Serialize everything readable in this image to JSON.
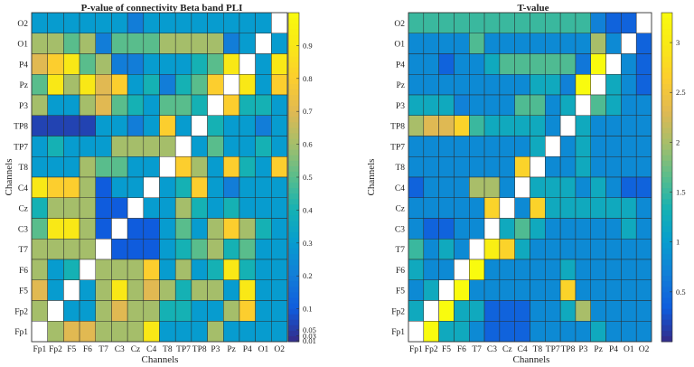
{
  "chart_data": [
    {
      "type": "heatmap",
      "title": "P-value of connectivity Beta band PLI",
      "xlabel": "Channels",
      "ylabel": "Channels",
      "x_tick_labels": [
        "Fp1",
        "Fp2",
        "F5",
        "F6",
        "T7",
        "C3",
        "Cz",
        "C4",
        "T8",
        "TP7",
        "TP8",
        "P3",
        "Pz",
        "P4",
        "O1",
        "O2"
      ],
      "y_tick_labels": [
        "O2",
        "O1",
        "P4",
        "Pz",
        "P3",
        "TP8",
        "TP7",
        "T8",
        "C4",
        "Cz",
        "C3",
        "T7",
        "F6",
        "F5",
        "Fp2",
        "Fp1"
      ],
      "colorbar": {
        "range": [
          0,
          1
        ],
        "ticks": [
          "0.9",
          "0.8",
          "0.7",
          "0.6",
          "0.5",
          "0.4",
          "0.3",
          "0.2",
          "0.1",
          "0.05",
          "0.03",
          "0.01"
        ]
      },
      "values": [
        [
          0.3,
          0.3,
          0.3,
          0.3,
          0.3,
          0.3,
          0.2,
          0.3,
          0.3,
          0.3,
          0.3,
          0.3,
          0.3,
          0.3,
          0.3,
          1.0
        ],
        [
          0.6,
          0.6,
          0.5,
          0.6,
          0.2,
          0.5,
          0.5,
          0.5,
          0.6,
          0.6,
          0.6,
          0.6,
          0.2,
          0.3,
          1.0,
          0.3
        ],
        [
          0.7,
          0.8,
          0.9,
          0.5,
          0.6,
          0.2,
          0.2,
          0.3,
          0.3,
          0.3,
          0.4,
          0.5,
          0.9,
          1.0,
          0.3,
          0.9
        ],
        [
          0.5,
          0.9,
          0.6,
          0.9,
          0.7,
          0.8,
          0.3,
          0.4,
          0.2,
          0.4,
          0.5,
          0.8,
          1.0,
          0.9,
          0.3,
          0.8
        ],
        [
          0.6,
          0.3,
          0.3,
          0.6,
          0.7,
          0.5,
          0.4,
          0.3,
          0.5,
          0.5,
          0.4,
          1.0,
          0.8,
          0.4,
          0.4,
          0.3
        ],
        [
          0.05,
          0.05,
          0.05,
          0.05,
          0.3,
          0.3,
          0.2,
          0.3,
          0.8,
          0.3,
          1.0,
          0.4,
          0.3,
          0.3,
          0.2,
          0.3
        ],
        [
          0.3,
          0.4,
          0.3,
          0.3,
          0.3,
          0.6,
          0.6,
          0.6,
          0.6,
          1.0,
          0.3,
          0.5,
          0.3,
          0.3,
          0.4,
          0.3
        ],
        [
          0.3,
          0.3,
          0.3,
          0.6,
          0.5,
          0.5,
          0.3,
          0.3,
          1.0,
          0.8,
          0.6,
          0.3,
          0.8,
          0.4,
          0.3,
          0.8
        ],
        [
          0.9,
          0.8,
          0.8,
          0.6,
          0.1,
          0.3,
          0.3,
          1.0,
          0.3,
          0.4,
          0.8,
          0.3,
          0.2,
          0.3,
          0.3,
          0.3
        ],
        [
          0.4,
          0.6,
          0.6,
          0.6,
          0.1,
          0.1,
          1.0,
          0.3,
          0.3,
          0.6,
          0.4,
          0.3,
          0.4,
          0.3,
          0.3,
          0.3
        ],
        [
          0.5,
          0.9,
          0.9,
          0.6,
          0.1,
          1.0,
          0.1,
          0.1,
          0.3,
          0.5,
          0.3,
          0.6,
          0.8,
          0.6,
          0.4,
          0.3
        ],
        [
          0.6,
          0.6,
          0.6,
          0.6,
          1.0,
          0.1,
          0.1,
          0.1,
          0.3,
          0.4,
          0.5,
          0.6,
          0.4,
          0.5,
          0.3,
          0.3
        ],
        [
          0.6,
          0.3,
          0.4,
          1.0,
          0.6,
          0.6,
          0.6,
          0.8,
          0.3,
          0.6,
          0.3,
          0.4,
          0.9,
          0.4,
          0.3,
          0.3
        ],
        [
          0.7,
          0.3,
          1.0,
          0.3,
          0.6,
          0.9,
          0.6,
          0.7,
          0.6,
          0.4,
          0.6,
          0.6,
          0.3,
          0.9,
          0.3,
          0.3
        ],
        [
          0.6,
          1.0,
          0.3,
          0.3,
          0.6,
          0.7,
          0.6,
          0.6,
          0.4,
          0.4,
          0.3,
          0.3,
          0.6,
          0.8,
          0.3,
          0.3
        ],
        [
          1.0,
          0.6,
          0.7,
          0.7,
          0.6,
          0.6,
          0.6,
          0.9,
          0.3,
          0.3,
          0.3,
          0.6,
          0.3,
          0.3,
          0.3,
          0.3
        ]
      ]
    },
    {
      "type": "heatmap",
      "title": "T-value",
      "xlabel": "Channels",
      "ylabel": "Channels",
      "x_tick_labels": [
        "Fp1",
        "Fp2",
        "F5",
        "F6",
        "T7",
        "C3",
        "Cz",
        "C4",
        "T8",
        "TP7",
        "TP8",
        "P3",
        "Pz",
        "P4",
        "O1",
        "O2"
      ],
      "y_tick_labels": [
        "O2",
        "O1",
        "P4",
        "Pz",
        "P3",
        "TP8",
        "TP7",
        "T8",
        "C4",
        "Cz",
        "C3",
        "T7",
        "F6",
        "F5",
        "Fp2",
        "Fp1"
      ],
      "colorbar": {
        "range": [
          0,
          3.3
        ],
        "ticks": [
          "3",
          "2.5",
          "2",
          "1.5",
          "1",
          "0.5"
        ]
      },
      "values": [
        [
          1.5,
          1.5,
          1.5,
          1.5,
          1.5,
          1.5,
          1.5,
          1.5,
          1.5,
          1.5,
          1.5,
          1.5,
          0.7,
          0.4,
          0.4,
          3.3
        ],
        [
          0.8,
          0.8,
          0.8,
          0.8,
          1.6,
          0.8,
          0.8,
          0.8,
          0.8,
          0.8,
          0.8,
          0.8,
          2.0,
          0.8,
          3.3,
          0.4
        ],
        [
          0.8,
          0.8,
          0.4,
          0.8,
          0.8,
          1.2,
          1.6,
          1.6,
          1.6,
          1.6,
          1.6,
          0.6,
          3.3,
          2.0,
          0.8,
          0.4
        ],
        [
          0.8,
          0.8,
          0.8,
          0.8,
          0.8,
          0.8,
          0.8,
          0.8,
          1.2,
          1.2,
          0.7,
          3.3,
          0.4,
          1.2,
          0.8,
          0.4
        ],
        [
          1.2,
          1.2,
          1.2,
          0.7,
          0.8,
          0.8,
          0.8,
          1.6,
          1.6,
          0.8,
          1.2,
          0.7,
          1.6,
          1.2,
          0.8,
          0.8
        ],
        [
          2.0,
          2.3,
          2.3,
          2.7,
          1.5,
          1.2,
          1.2,
          1.2,
          1.2,
          0.8,
          3.3,
          1.2,
          0.8,
          0.8,
          0.8,
          0.8
        ],
        [
          0.8,
          0.8,
          0.8,
          0.8,
          0.8,
          0.8,
          0.8,
          0.8,
          1.2,
          3.3,
          0.8,
          1.2,
          0.8,
          0.8,
          0.8,
          0.8
        ],
        [
          0.8,
          0.8,
          0.8,
          0.8,
          0.8,
          0.8,
          0.8,
          2.7,
          3.3,
          0.8,
          0.8,
          1.2,
          0.8,
          0.8,
          0.8,
          0.8
        ],
        [
          0.4,
          0.8,
          0.8,
          0.8,
          2.0,
          2.0,
          0.8,
          3.3,
          1.2,
          1.2,
          1.2,
          0.8,
          1.2,
          0.8,
          0.4,
          0.4
        ],
        [
          0.8,
          0.8,
          0.8,
          0.8,
          0.8,
          2.7,
          3.3,
          0.8,
          2.7,
          1.2,
          1.2,
          1.2,
          1.2,
          1.2,
          1.2,
          0.8
        ],
        [
          0.8,
          0.4,
          0.4,
          0.8,
          0.8,
          3.3,
          1.2,
          1.6,
          1.2,
          0.8,
          0.8,
          0.8,
          0.8,
          0.8,
          1.2,
          0.8
        ],
        [
          1.5,
          0.8,
          1.2,
          0.8,
          0.8,
          3.1,
          2.7,
          1.2,
          0.8,
          0.8,
          0.8,
          0.8,
          0.8,
          0.8,
          0.8,
          0.8
        ],
        [
          1.2,
          0.8,
          0.8,
          0.8,
          3.3,
          0.8,
          0.8,
          0.8,
          0.8,
          0.8,
          1.2,
          0.8,
          0.8,
          0.8,
          0.8,
          0.8
        ],
        [
          0.8,
          1.2,
          0.8,
          3.3,
          0.8,
          0.8,
          0.8,
          0.8,
          0.8,
          0.8,
          2.7,
          0.8,
          0.8,
          0.8,
          0.8,
          0.8
        ],
        [
          1.2,
          0.8,
          3.3,
          1.2,
          1.2,
          0.4,
          0.4,
          0.4,
          0.8,
          0.8,
          1.2,
          2.0,
          0.8,
          0.8,
          0.8,
          0.8
        ],
        [
          0.8,
          3.3,
          1.2,
          1.2,
          0.8,
          0.4,
          0.4,
          0.4,
          0.8,
          0.8,
          0.8,
          0.8,
          1.2,
          0.8,
          0.8,
          0.8
        ]
      ]
    }
  ]
}
